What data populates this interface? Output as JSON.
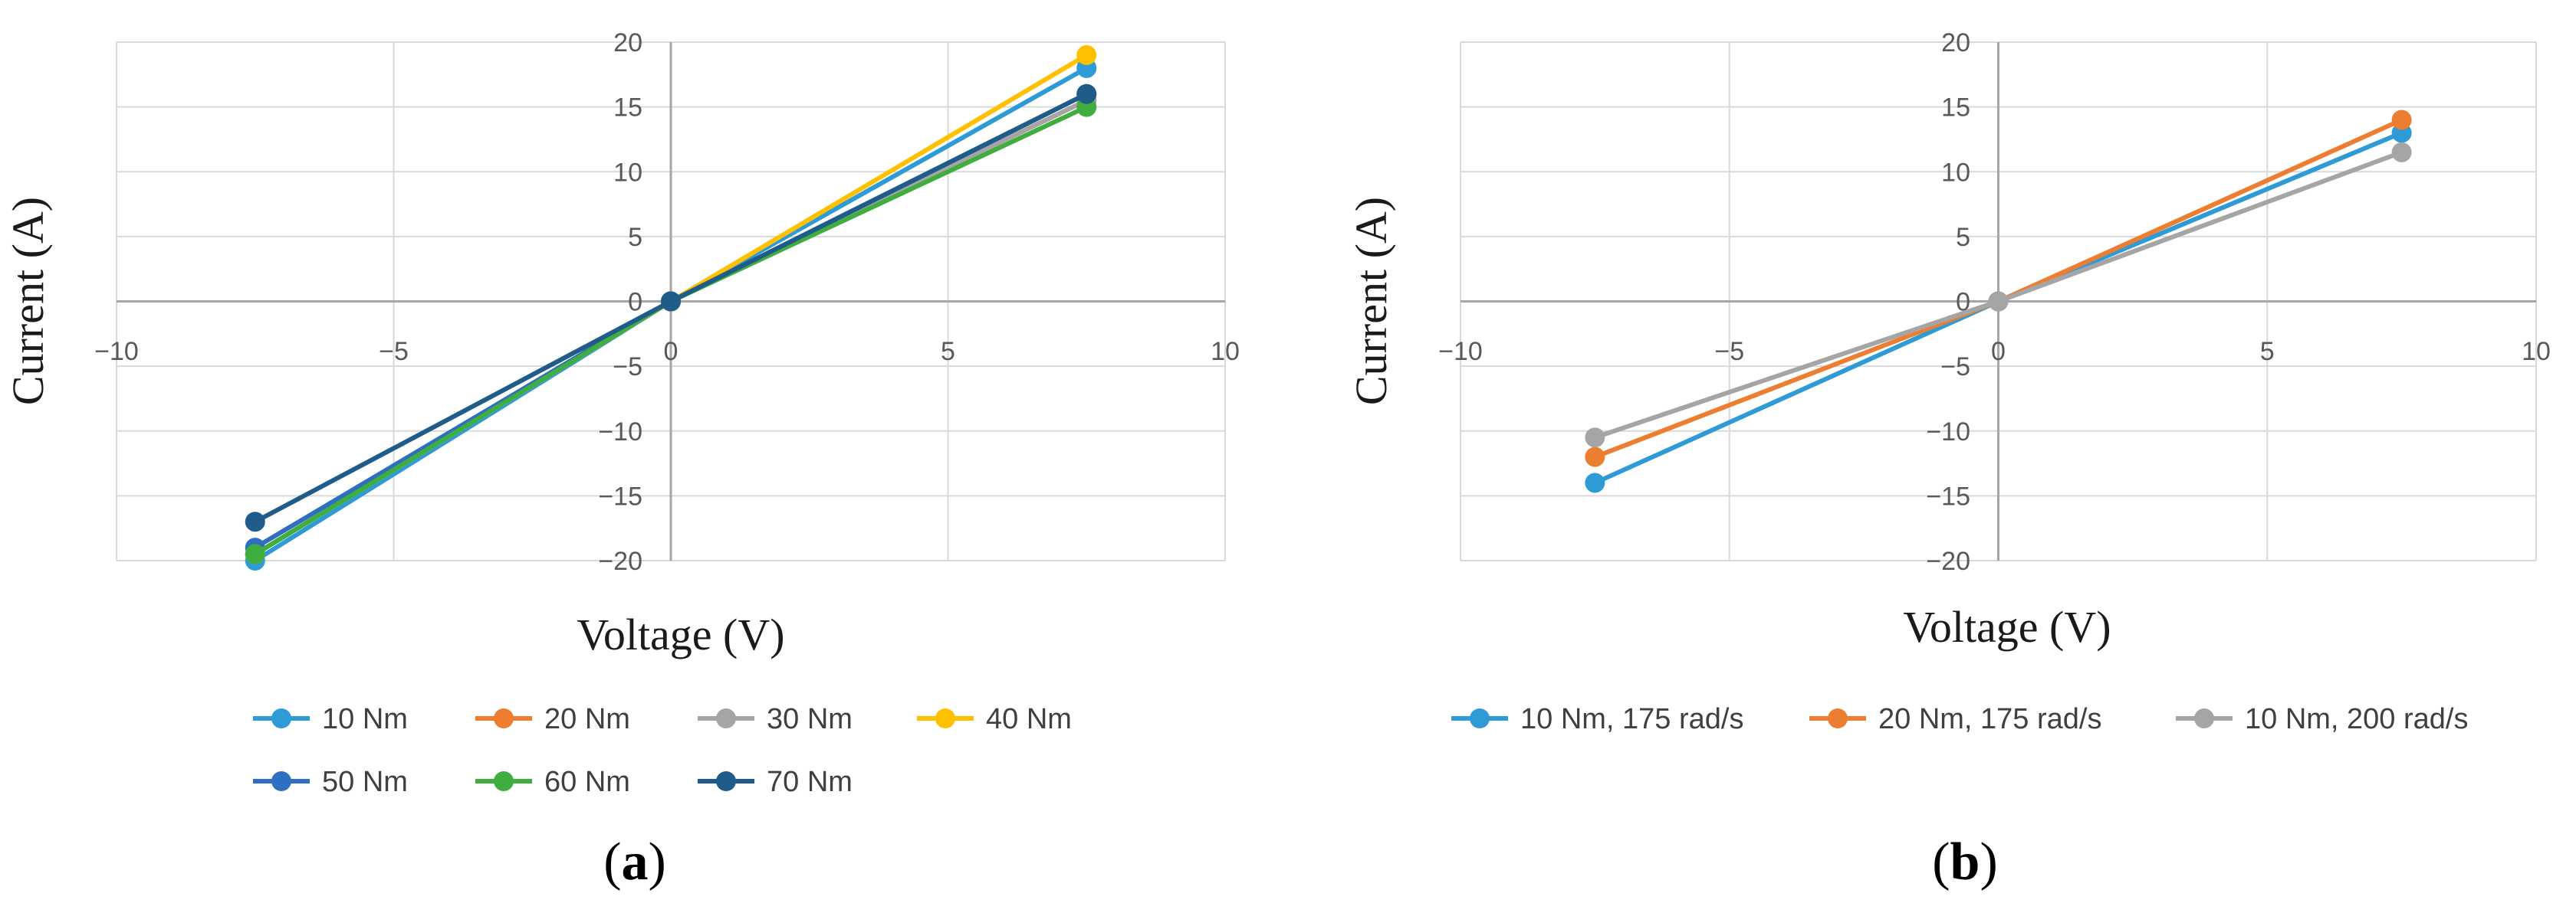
{
  "chart_data": [
    {
      "type": "line",
      "panel_label": "(a)",
      "panel_letter": "a",
      "xlabel": "Voltage (V)",
      "ylabel": "Current (A)",
      "xlim": [
        -10,
        10
      ],
      "ylim": [
        -20,
        20
      ],
      "xticks": [
        -10,
        -5,
        0,
        5,
        10
      ],
      "yticks": [
        -20,
        -15,
        -10,
        -5,
        0,
        5,
        10,
        15,
        20
      ],
      "xtick_labels": [
        "−10",
        "−5",
        "0",
        "5",
        "10"
      ],
      "ytick_labels": [
        "−20",
        "−15",
        "−10",
        "−5",
        "0",
        "5",
        "10",
        "15",
        "20"
      ],
      "grid": true,
      "legend_position": "bottom",
      "series": [
        {
          "name": "10 Nm",
          "color": "#2E9BD6",
          "x": [
            -7.5,
            0,
            7.5
          ],
          "y": [
            -20,
            0,
            18
          ]
        },
        {
          "name": "20 Nm",
          "color": "#ED7D31",
          "x": [
            -7.5,
            0,
            7.5
          ],
          "y": [
            -19.5,
            0,
            15.5
          ]
        },
        {
          "name": "30 Nm",
          "color": "#A5A5A5",
          "x": [
            -7.5,
            0,
            7.5
          ],
          "y": [
            -19.5,
            0,
            15.5
          ]
        },
        {
          "name": "40 Nm",
          "color": "#FFC000",
          "x": [
            -7.5,
            0,
            7.5
          ],
          "y": [
            -19.5,
            0,
            19
          ]
        },
        {
          "name": "50 Nm",
          "color": "#2E6FBF",
          "x": [
            -7.5,
            0,
            7.5
          ],
          "y": [
            -19,
            0,
            16
          ]
        },
        {
          "name": "60 Nm",
          "color": "#3FAE3F",
          "x": [
            -7.5,
            0,
            7.5
          ],
          "y": [
            -19.5,
            0,
            15
          ]
        },
        {
          "name": "70 Nm",
          "color": "#1F5C8A",
          "x": [
            -7.5,
            0,
            7.5
          ],
          "y": [
            -17,
            0,
            16
          ]
        }
      ]
    },
    {
      "type": "line",
      "panel_label": "(b)",
      "panel_letter": "b",
      "xlabel": "Voltage (V)",
      "ylabel": "Current (A)",
      "xlim": [
        -10,
        10
      ],
      "ylim": [
        -20,
        20
      ],
      "xticks": [
        -10,
        -5,
        0,
        5,
        10
      ],
      "yticks": [
        -20,
        -15,
        -10,
        -5,
        0,
        5,
        10,
        15,
        20
      ],
      "xtick_labels": [
        "−10",
        "−5",
        "0",
        "5",
        "10"
      ],
      "ytick_labels": [
        "−20",
        "−15",
        "−10",
        "−5",
        "0",
        "5",
        "10",
        "15",
        "20"
      ],
      "grid": true,
      "legend_position": "bottom",
      "series": [
        {
          "name": "10 Nm, 175 rad/s",
          "color": "#2E9BD6",
          "x": [
            -7.5,
            0,
            7.5
          ],
          "y": [
            -14,
            0,
            13
          ]
        },
        {
          "name": "20 Nm, 175 rad/s",
          "color": "#ED7D31",
          "x": [
            -7.5,
            0,
            7.5
          ],
          "y": [
            -12,
            0,
            14
          ]
        },
        {
          "name": "10 Nm, 200 rad/s",
          "color": "#A5A5A5",
          "x": [
            -7.5,
            0,
            7.5
          ],
          "y": [
            -10.5,
            0,
            11.5
          ]
        }
      ]
    }
  ]
}
